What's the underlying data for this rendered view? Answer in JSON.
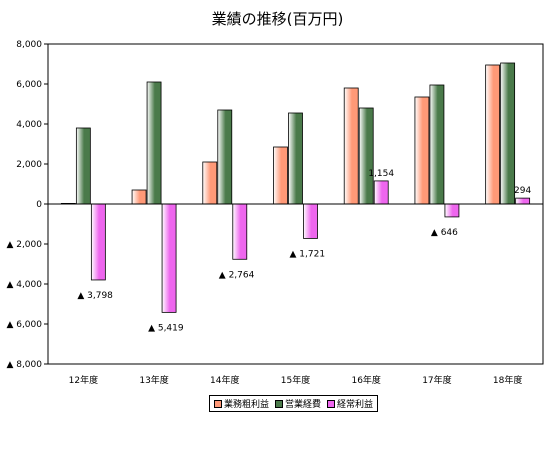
{
  "chart_data": {
    "type": "bar",
    "title": "業績の推移(百万円)",
    "categories": [
      "12年度",
      "13年度",
      "14年度",
      "15年度",
      "16年度",
      "17年度",
      "18年度"
    ],
    "series": [
      {
        "name": "業務粗利益",
        "color": "#ff9977",
        "values": [
          30,
          700,
          2100,
          2850,
          5800,
          5350,
          6950
        ]
      },
      {
        "name": "営業経費",
        "color": "#4a7a4a",
        "values": [
          3800,
          6100,
          4700,
          4550,
          4800,
          5950,
          7050
        ]
      },
      {
        "name": "経常利益",
        "color": "#ee66ee",
        "values": [
          -3798,
          -5419,
          -2764,
          -1721,
          1154,
          -646,
          294
        ]
      }
    ],
    "data_labels": [
      "▲ 3,798",
      "▲ 5,419",
      "▲ 2,764",
      "▲ 1,721",
      "1,154",
      "▲ 646",
      "294"
    ],
    "ylim": [
      -8000,
      8000
    ],
    "yticks": [
      8000,
      6000,
      4000,
      2000,
      0,
      -2000,
      -4000,
      -6000,
      -8000
    ],
    "ytick_labels": [
      "8,000",
      "6,000",
      "4,000",
      "2,000",
      "0",
      "▲ 2,000",
      "▲ 4,000",
      "▲ 6,000",
      "▲ 8,000"
    ],
    "grid": false,
    "legend_position": "bottom"
  }
}
